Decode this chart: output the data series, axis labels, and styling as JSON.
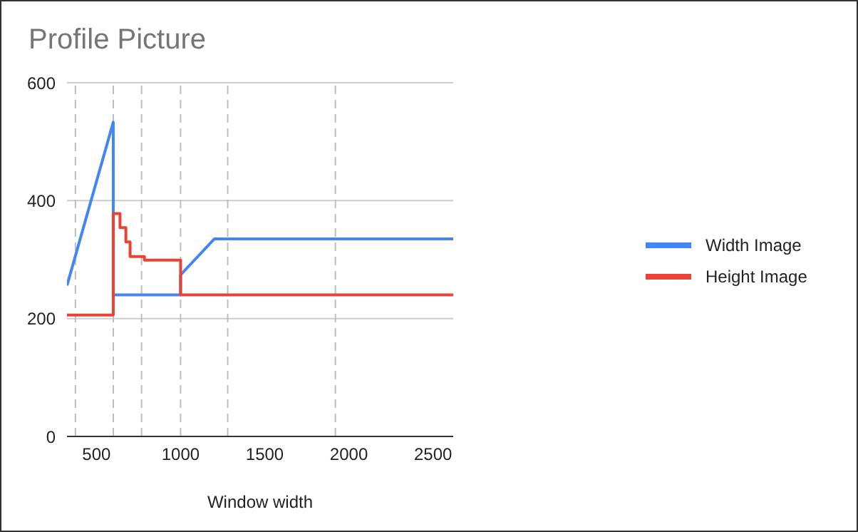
{
  "chart_data": {
    "type": "line",
    "title": "Profile Picture",
    "xlabel": "Window width",
    "xlim": [
      325,
      2620
    ],
    "xticks": [
      500,
      1000,
      1500,
      2000,
      2500
    ],
    "ylim": [
      0,
      600
    ],
    "yticks": [
      0,
      200,
      400,
      600
    ],
    "grid": "y",
    "legend": "right",
    "marker": "none",
    "line_style": "solid",
    "ref_lines": [
      {
        "axis": "x",
        "value": 375,
        "color": "#bdbdbd",
        "line_style": "dashed"
      },
      {
        "axis": "x",
        "value": 600,
        "color": "#bdbdbd",
        "line_style": "dashed"
      },
      {
        "axis": "x",
        "value": 768,
        "color": "#bdbdbd",
        "line_style": "dashed"
      },
      {
        "axis": "x",
        "value": 1000,
        "color": "#bdbdbd",
        "line_style": "dashed"
      },
      {
        "axis": "x",
        "value": 1280,
        "color": "#bdbdbd",
        "line_style": "dashed"
      },
      {
        "axis": "x",
        "value": 1920,
        "color": "#bdbdbd",
        "line_style": "dashed"
      }
    ],
    "series": [
      {
        "name": "Width Image",
        "color": "#4285f4",
        "x": [
          325,
          600,
          600,
          1000,
          1000,
          1200,
          2620
        ],
        "values": [
          256,
          533,
          240,
          240,
          274,
          335,
          335
        ]
      },
      {
        "name": "Height Image",
        "color": "#ea4335",
        "x": [
          325,
          600,
          600,
          640,
          640,
          675,
          675,
          700,
          700,
          785,
          785,
          1000,
          1000,
          2620
        ],
        "values": [
          206,
          206,
          378,
          378,
          354,
          354,
          330,
          330,
          305,
          305,
          299,
          299,
          240,
          240
        ]
      }
    ]
  }
}
